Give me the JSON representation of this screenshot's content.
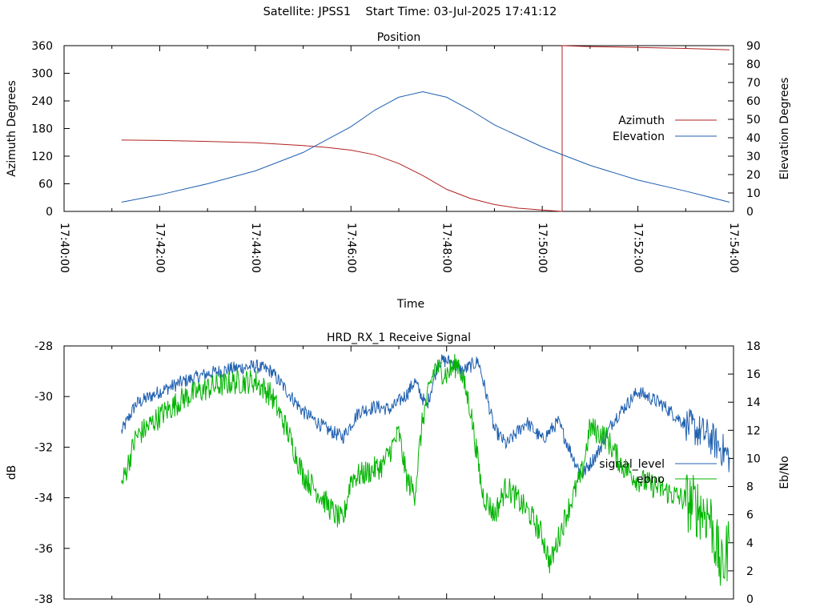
{
  "header": {
    "satellite": "Satellite: JPSS1",
    "start_time": "Start Time: 03-Jul-2025 17:41:12"
  },
  "colors": {
    "red": "#b22222",
    "blue": "#2060b0",
    "green": "#00b400",
    "axis": "#000000"
  },
  "chart_data": [
    {
      "type": "line",
      "title": "Position",
      "xlabel": "Time",
      "ylabel": "Azimuth Degrees",
      "y2label": "Elevation Degrees",
      "xlim": [
        "17:40:00",
        "17:54:00"
      ],
      "ylim": [
        0,
        360
      ],
      "y2lim": [
        0,
        90
      ],
      "x_ticks": [
        "17:40:00",
        "17:42:00",
        "17:44:00",
        "17:46:00",
        "17:48:00",
        "17:50:00",
        "17:52:00",
        "17:54:00"
      ],
      "y_ticks": [
        "0",
        "60",
        "120",
        "180",
        "240",
        "300",
        "360"
      ],
      "y2_ticks": [
        "0",
        "10",
        "20",
        "30",
        "40",
        "50",
        "60",
        "70",
        "80",
        "90"
      ],
      "legend": "right",
      "grid": false,
      "series": [
        {
          "name": "Azimuth",
          "axis": "left",
          "color": "#b22222",
          "points": [
            [
              "17:41:12",
              155
            ],
            [
              "17:42:00",
              154
            ],
            [
              "17:43:00",
              152
            ],
            [
              "17:44:00",
              149
            ],
            [
              "17:45:00",
              143
            ],
            [
              "17:45:30",
              139
            ],
            [
              "17:46:00",
              133
            ],
            [
              "17:46:30",
              123
            ],
            [
              "17:47:00",
              104
            ],
            [
              "17:47:30",
              78
            ],
            [
              "17:48:00",
              48
            ],
            [
              "17:48:30",
              28
            ],
            [
              "17:49:00",
              15
            ],
            [
              "17:49:30",
              7
            ],
            [
              "17:50:00",
              3
            ],
            [
              "17:50:25",
              0
            ],
            [
              "17:50:25",
              360
            ],
            [
              "17:51:00",
              358
            ],
            [
              "17:52:00",
              356
            ],
            [
              "17:53:00",
              354
            ],
            [
              "17:53:55",
              351
            ]
          ]
        },
        {
          "name": "Elevation",
          "axis": "right",
          "color": "#2060b0",
          "points": [
            [
              "17:41:12",
              5
            ],
            [
              "17:42:00",
              9
            ],
            [
              "17:43:00",
              15
            ],
            [
              "17:44:00",
              22
            ],
            [
              "17:45:00",
              32
            ],
            [
              "17:46:00",
              46
            ],
            [
              "17:46:30",
              55
            ],
            [
              "17:47:00",
              62
            ],
            [
              "17:47:30",
              65
            ],
            [
              "17:48:00",
              62
            ],
            [
              "17:48:30",
              55
            ],
            [
              "17:49:00",
              47
            ],
            [
              "17:50:00",
              35
            ],
            [
              "17:51:00",
              25
            ],
            [
              "17:52:00",
              17
            ],
            [
              "17:53:00",
              11
            ],
            [
              "17:53:55",
              5
            ]
          ]
        }
      ]
    },
    {
      "type": "line",
      "title": "HRD_RX_1 Receive Signal",
      "ylabel": "dB",
      "y2label": "Eb/No",
      "xlim": [
        "17:40:00",
        "17:54:00"
      ],
      "ylim": [
        -38,
        -28
      ],
      "y2lim": [
        0,
        18
      ],
      "y_ticks": [
        "-28",
        "-30",
        "-32",
        "-34",
        "-36",
        "-38"
      ],
      "y2_ticks": [
        "0",
        "2",
        "4",
        "6",
        "8",
        "10",
        "12",
        "14",
        "16",
        "18"
      ],
      "legend": "right",
      "grid": false,
      "series": [
        {
          "name": "signal_level",
          "axis": "left",
          "color": "#2060b0",
          "points": [
            [
              "17:41:12",
              -31.4
            ],
            [
              "17:41:30",
              -30.3
            ],
            [
              "17:42:00",
              -29.8
            ],
            [
              "17:42:30",
              -29.4
            ],
            [
              "17:43:00",
              -29.1
            ],
            [
              "17:43:30",
              -28.9
            ],
            [
              "17:44:00",
              -28.8
            ],
            [
              "17:44:20",
              -29.0
            ],
            [
              "17:44:40",
              -29.8
            ],
            [
              "17:45:00",
              -30.6
            ],
            [
              "17:45:30",
              -31.3
            ],
            [
              "17:45:50",
              -31.6
            ],
            [
              "17:46:10",
              -30.6
            ],
            [
              "17:46:30",
              -30.4
            ],
            [
              "17:46:50",
              -30.5
            ],
            [
              "17:47:10",
              -29.9
            ],
            [
              "17:47:20",
              -29.4
            ],
            [
              "17:47:35",
              -30.4
            ],
            [
              "17:47:50",
              -28.6
            ],
            [
              "17:48:05",
              -28.6
            ],
            [
              "17:48:20",
              -29.0
            ],
            [
              "17:48:40",
              -28.6
            ],
            [
              "17:49:00",
              -31.3
            ],
            [
              "17:49:15",
              -31.9
            ],
            [
              "17:49:40",
              -31.0
            ],
            [
              "17:50:00",
              -31.7
            ],
            [
              "17:50:20",
              -31.0
            ],
            [
              "17:50:40",
              -32.5
            ],
            [
              "17:50:50",
              -33.1
            ],
            [
              "17:51:10",
              -32.2
            ],
            [
              "17:51:30",
              -30.9
            ],
            [
              "17:52:00",
              -29.8
            ],
            [
              "17:52:30",
              -30.3
            ],
            [
              "17:53:00",
              -31.1
            ],
            [
              "17:53:30",
              -31.6
            ],
            [
              "17:53:55",
              -32.4
            ]
          ]
        },
        {
          "name": "ebno",
          "axis": "right",
          "color": "#00b400",
          "points": [
            [
              "17:41:12",
              8.0
            ],
            [
              "17:41:30",
              11.5
            ],
            [
              "17:42:00",
              13.0
            ],
            [
              "17:42:30",
              14.3
            ],
            [
              "17:43:00",
              15.0
            ],
            [
              "17:43:30",
              15.4
            ],
            [
              "17:44:00",
              15.5
            ],
            [
              "17:44:20",
              14.5
            ],
            [
              "17:44:40",
              12.0
            ],
            [
              "17:45:00",
              8.8
            ],
            [
              "17:45:20",
              7.5
            ],
            [
              "17:45:40",
              6.0
            ],
            [
              "17:45:50",
              5.5
            ],
            [
              "17:46:00",
              8.6
            ],
            [
              "17:46:20",
              9.0
            ],
            [
              "17:46:40",
              9.5
            ],
            [
              "17:47:00",
              11.8
            ],
            [
              "17:47:10",
              8.5
            ],
            [
              "17:47:20",
              7.5
            ],
            [
              "17:47:30",
              12.8
            ],
            [
              "17:47:45",
              16.5
            ],
            [
              "17:48:00",
              16.0
            ],
            [
              "17:48:15",
              16.8
            ],
            [
              "17:48:30",
              13.5
            ],
            [
              "17:48:45",
              7.5
            ],
            [
              "17:49:00",
              6.0
            ],
            [
              "17:49:15",
              8.0
            ],
            [
              "17:49:30",
              7.0
            ],
            [
              "17:49:45",
              6.0
            ],
            [
              "17:50:00",
              4.5
            ],
            [
              "17:50:10",
              2.5
            ],
            [
              "17:50:30",
              6.0
            ],
            [
              "17:50:50",
              9.0
            ],
            [
              "17:51:00",
              12.2
            ],
            [
              "17:51:20",
              11.5
            ],
            [
              "17:51:40",
              9.5
            ],
            [
              "17:52:00",
              8.5
            ],
            [
              "17:52:30",
              7.8
            ],
            [
              "17:53:00",
              7.0
            ],
            [
              "17:53:30",
              6.0
            ],
            [
              "17:53:45",
              2.0
            ],
            [
              "17:53:55",
              4.0
            ]
          ]
        }
      ]
    }
  ]
}
